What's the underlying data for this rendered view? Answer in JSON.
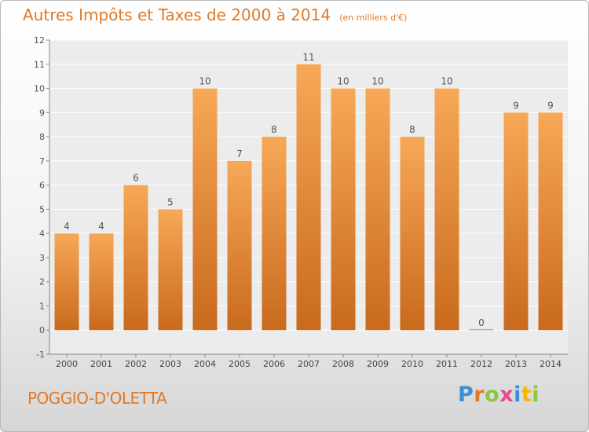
{
  "title": "Autres Impôts et Taxes de 2000 à 2014",
  "unit_note": "(en milliers d'€)",
  "location": "POGGIO-D'OLETTA",
  "logo": {
    "letters": [
      "P",
      "r",
      "o",
      "x",
      "i",
      "t",
      "i"
    ],
    "colors": [
      "#3b8fd6",
      "#e07a28",
      "#8cc63f",
      "#e84a8a",
      "#3b8fd6",
      "#f2b705",
      "#8cc63f"
    ]
  },
  "colors": {
    "accent": "#e07a28",
    "bar_top": "#f7a857",
    "bar_bottom": "#c96a1c"
  },
  "chart_data": {
    "type": "bar",
    "categories": [
      "2000",
      "2001",
      "2002",
      "2003",
      "2004",
      "2005",
      "2006",
      "2007",
      "2008",
      "2009",
      "2010",
      "2011",
      "2012",
      "2013",
      "2014"
    ],
    "values": [
      4,
      4,
      6,
      5,
      10,
      7,
      8,
      11,
      10,
      10,
      8,
      10,
      0,
      9,
      9
    ],
    "ylim": [
      -1,
      12
    ],
    "yticks": [
      "-1",
      "0",
      "1",
      "2",
      "3",
      "4",
      "5",
      "6",
      "7",
      "8",
      "9",
      "10",
      "11",
      "12"
    ],
    "grid": true
  }
}
